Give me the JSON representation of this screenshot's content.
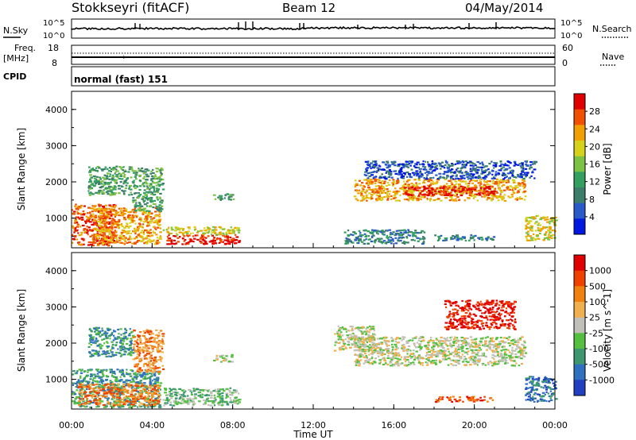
{
  "header": {
    "station": "Stokkseyri (fitACF)",
    "beam": "Beam 12",
    "date": "04/May/2014"
  },
  "top_panels": {
    "nsky_label": "N.Sky",
    "nsky_ticks": [
      "10^5",
      "10^0"
    ],
    "nsearch_label": "N.Search",
    "nsearch_ticks": [
      "10^5",
      "10^0"
    ],
    "freq_label": "Freq.",
    "freq_unit": "[MHz]",
    "freq_ticks": [
      "18",
      "8"
    ],
    "nave_label": "Nave",
    "nave_ticks": [
      "60",
      "0"
    ],
    "cpid_label": "CPID",
    "cpid_value": "normal (fast) 151"
  },
  "chart_data": [
    {
      "type": "heatmap",
      "name": "power",
      "ylabel": "Slant Range [km]",
      "xlabel": "",
      "ylim": [
        180,
        4500
      ],
      "xlim_hours": [
        0,
        24
      ],
      "y_ticks": [
        "1000",
        "2000",
        "3000",
        "4000"
      ],
      "colorbar": {
        "label": "Power [dB]",
        "ticks": [
          "28",
          "24",
          "20",
          "16",
          "12",
          "8",
          "4"
        ],
        "colors": [
          "#0018e0",
          "#2a5ac8",
          "#3d7e6a",
          "#33a060",
          "#7ec244",
          "#d6d21c",
          "#f0a000",
          "#f05000",
          "#e00000"
        ]
      },
      "regions": [
        {
          "t0": 0.0,
          "t1": 2.2,
          "r0": 250,
          "r1": 1400,
          "level": 7
        },
        {
          "t0": 1.0,
          "t1": 4.4,
          "r0": 300,
          "r1": 1300,
          "level": 6
        },
        {
          "t0": 3.0,
          "t1": 4.5,
          "r0": 1200,
          "r1": 2400,
          "level": 3
        },
        {
          "t0": 0.8,
          "t1": 3.0,
          "r0": 1650,
          "r1": 2450,
          "level": 3
        },
        {
          "t0": 4.6,
          "t1": 8.3,
          "r0": 300,
          "r1": 560,
          "level": 8
        },
        {
          "t0": 4.5,
          "t1": 8.3,
          "r0": 560,
          "r1": 780,
          "level": 5
        },
        {
          "t0": 7.0,
          "t1": 8.0,
          "r0": 1500,
          "r1": 1700,
          "level": 3
        },
        {
          "t0": 14.0,
          "t1": 22.5,
          "r0": 1500,
          "r1": 2100,
          "level": 6
        },
        {
          "t0": 16.5,
          "t1": 21.0,
          "r0": 1650,
          "r1": 1900,
          "level": 8
        },
        {
          "t0": 14.5,
          "t1": 23.0,
          "r0": 2100,
          "r1": 2600,
          "level": 1
        },
        {
          "t0": 22.5,
          "t1": 24.0,
          "r0": 400,
          "r1": 1100,
          "level": 5
        },
        {
          "t0": 18.0,
          "t1": 21.0,
          "r0": 400,
          "r1": 550,
          "level": 2
        },
        {
          "t0": 13.5,
          "t1": 17.5,
          "r0": 300,
          "r1": 700,
          "level": 2
        }
      ]
    },
    {
      "type": "heatmap",
      "name": "velocity",
      "ylabel": "Slant Range [km]",
      "xlabel": "Time UT",
      "ylim": [
        180,
        4500
      ],
      "xlim_hours": [
        0,
        24
      ],
      "y_ticks": [
        "1000",
        "2000",
        "3000",
        "4000"
      ],
      "x_ticks": [
        "00:00",
        "04:00",
        "08:00",
        "12:00",
        "16:00",
        "20:00",
        "00:00"
      ],
      "colorbar": {
        "label": "Velocity [m s^-1]",
        "ticks": [
          "1000",
          "500",
          "100",
          "25",
          "-25",
          "-100",
          "-500",
          "-1000"
        ],
        "colors": [
          "#2040c0",
          "#3070c0",
          "#3d9870",
          "#55c040",
          "#c0c0b8",
          "#f0b050",
          "#f08010",
          "#f04000",
          "#e00000"
        ]
      },
      "regions": [
        {
          "t0": 0.0,
          "t1": 4.4,
          "r0": 250,
          "r1": 1300,
          "level": 2
        },
        {
          "t0": 0.3,
          "t1": 4.3,
          "r0": 300,
          "r1": 900,
          "level": 6
        },
        {
          "t0": 3.0,
          "t1": 4.5,
          "r0": 1200,
          "r1": 2400,
          "level": 6
        },
        {
          "t0": 0.8,
          "t1": 3.0,
          "r0": 1650,
          "r1": 2450,
          "level": 2
        },
        {
          "t0": 4.5,
          "t1": 8.3,
          "r0": 300,
          "r1": 780,
          "level": 3
        },
        {
          "t0": 7.0,
          "t1": 8.0,
          "r0": 1500,
          "r1": 1700,
          "level": 4
        },
        {
          "t0": 14.0,
          "t1": 22.5,
          "r0": 1400,
          "r1": 2200,
          "level": 4
        },
        {
          "t0": 13.0,
          "t1": 15.0,
          "r0": 1800,
          "r1": 2500,
          "level": 4
        },
        {
          "t0": 18.0,
          "t1": 21.0,
          "r0": 400,
          "r1": 550,
          "level": 7
        },
        {
          "t0": 22.5,
          "t1": 24.0,
          "r0": 400,
          "r1": 1100,
          "level": 1
        },
        {
          "t0": 18.5,
          "t1": 22.0,
          "r0": 2400,
          "r1": 3200,
          "level": 8
        }
      ]
    }
  ]
}
